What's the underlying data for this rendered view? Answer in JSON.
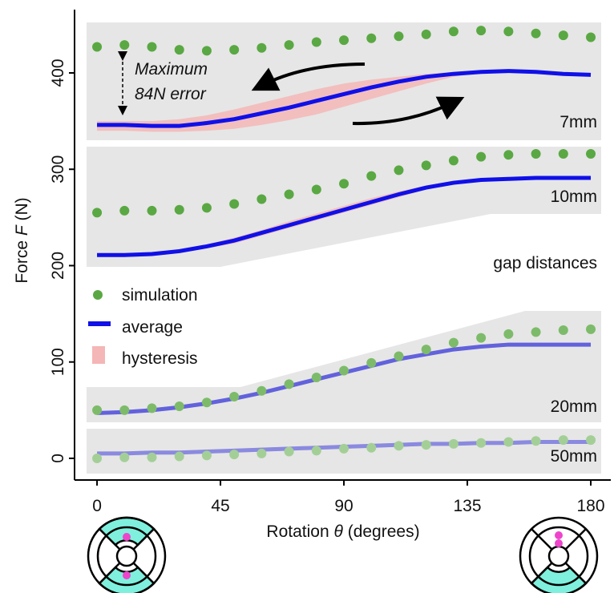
{
  "chart_data": {
    "type": "line",
    "xlabel": [
      "Rotation ",
      "θ",
      " (degrees)"
    ],
    "ylabel": [
      "Force ",
      "F",
      " (N)"
    ],
    "xlim": [
      -8.2,
      187.3
    ],
    "ylim": [
      -22.5,
      465.7
    ],
    "xticks": [
      0,
      45,
      90,
      135,
      180
    ],
    "yticks": [
      0,
      100,
      200,
      300,
      400
    ],
    "x": [
      0,
      10,
      20,
      30,
      40,
      50,
      60,
      70,
      80,
      90,
      100,
      110,
      120,
      130,
      140,
      150,
      160,
      170,
      180
    ],
    "legend": [
      {
        "name": "simulation",
        "color": "#5aa843"
      },
      {
        "name": "average",
        "color": "#1010e8"
      },
      {
        "name": "hysteresis",
        "color": "#f4b6b6"
      }
    ],
    "gaps_title": "gap distances",
    "annotation": [
      "Maximum",
      "84N error"
    ],
    "gaps": [
      {
        "label": "7mm",
        "sim_color": "#5aa843",
        "avg_color": "#1010e8",
        "simulation": [
          427,
          429,
          427,
          424,
          423,
          424,
          426,
          429,
          432,
          434,
          436,
          438,
          440,
          443,
          444,
          443,
          441,
          439,
          437
        ],
        "average": [
          346,
          346,
          345,
          345,
          348,
          352,
          358,
          364,
          371,
          378,
          385,
          391,
          396,
          399,
          401,
          402,
          401,
          399,
          398
        ],
        "hysteresis_lower": [
          340,
          340,
          339,
          339,
          340,
          342,
          346,
          351,
          357,
          365,
          373,
          381,
          389,
          396,
          400,
          401,
          400,
          399,
          398
        ],
        "hysteresis_upper": [
          350,
          350,
          350,
          352,
          356,
          362,
          369,
          376,
          383,
          389,
          393,
          396,
          399,
          401,
          402,
          402,
          401,
          399,
          398
        ]
      },
      {
        "label": "10mm",
        "sim_color": "#5aa843",
        "avg_color": "#1010e8",
        "simulation": [
          255,
          257,
          257,
          258,
          260,
          264,
          269,
          274,
          279,
          285,
          293,
          299,
          304,
          309,
          313,
          315,
          316,
          316,
          316
        ],
        "average": [
          211,
          211,
          212,
          215,
          220,
          226,
          234,
          242,
          250,
          258,
          266,
          274,
          281,
          286,
          289,
          290,
          291,
          291,
          291
        ],
        "hysteresis_lower": [
          209,
          209,
          210,
          213,
          218,
          223,
          231,
          239,
          247,
          255,
          263,
          271,
          279,
          285,
          288,
          290,
          290,
          290,
          290
        ],
        "hysteresis_upper": [
          213,
          213,
          214,
          217,
          222,
          229,
          237,
          246,
          254,
          262,
          270,
          277,
          283,
          287,
          290,
          291,
          292,
          292,
          292
        ]
      },
      {
        "label": "20mm",
        "sim_color": "#7dbb6a",
        "avg_color": "#6262dd",
        "simulation": [
          50,
          50,
          52,
          54,
          58,
          64,
          70,
          77,
          84,
          91,
          99,
          106,
          113,
          120,
          125,
          129,
          131,
          133,
          134
        ],
        "average": [
          47,
          48,
          50,
          53,
          57,
          62,
          68,
          75,
          82,
          89,
          96,
          103,
          108,
          113,
          116,
          118,
          118,
          118,
          118
        ],
        "hysteresis_lower": [
          45,
          46,
          48,
          51,
          55,
          60,
          66,
          73,
          80,
          87,
          94,
          101,
          106,
          111,
          114,
          116,
          116,
          116,
          116
        ],
        "hysteresis_upper": [
          49,
          50,
          52,
          55,
          59,
          64,
          70,
          77,
          84,
          91,
          98,
          105,
          110,
          115,
          118,
          120,
          120,
          120,
          120
        ]
      },
      {
        "label": "50mm",
        "sim_color": "#a3cf97",
        "avg_color": "#8a8ae0",
        "simulation": [
          0,
          1,
          1,
          2,
          3,
          4,
          5,
          7,
          8,
          10,
          11,
          13,
          14,
          15,
          16,
          17,
          18,
          19,
          19
        ],
        "average": [
          5,
          5,
          6,
          6,
          7,
          8,
          9,
          10,
          11,
          12,
          13,
          14,
          15,
          15,
          16,
          16,
          17,
          17,
          17
        ],
        "hysteresis_lower": [
          3,
          3,
          4,
          4,
          5,
          6,
          7,
          8,
          9,
          10,
          11,
          12,
          13,
          13,
          14,
          14,
          15,
          15,
          15
        ],
        "hysteresis_upper": [
          7,
          7,
          8,
          8,
          9,
          10,
          11,
          12,
          13,
          14,
          15,
          16,
          17,
          17,
          18,
          18,
          19,
          19,
          19
        ]
      }
    ]
  }
}
